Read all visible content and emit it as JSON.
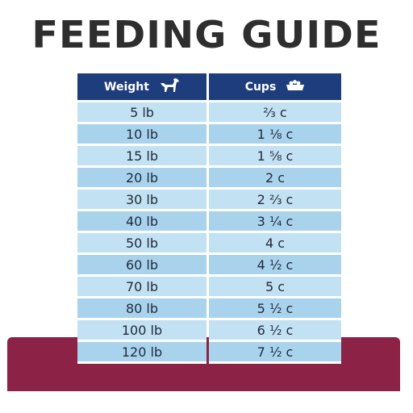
{
  "title": "FEEDING GUIDE",
  "table": {
    "headers": {
      "weight": "Weight",
      "cups": "Cups"
    },
    "icons": {
      "weight": "dog-icon",
      "cups": "food-bowl-icon"
    },
    "rows": [
      {
        "weight": "5 lb",
        "cups": "⅔ c"
      },
      {
        "weight": "10 lb",
        "cups": "1 ⅛ c"
      },
      {
        "weight": "15 lb",
        "cups": "1 ⅝ c"
      },
      {
        "weight": "20 lb",
        "cups": "2 c"
      },
      {
        "weight": "30 lb",
        "cups": "2 ⅔ c"
      },
      {
        "weight": "40 lb",
        "cups": "3 ¼ c"
      },
      {
        "weight": "50 lb",
        "cups": "4 c"
      },
      {
        "weight": "60 lb",
        "cups": "4 ½ c"
      },
      {
        "weight": "70 lb",
        "cups": "5 c"
      },
      {
        "weight": "80 lb",
        "cups": "5 ½ c"
      },
      {
        "weight": "100 lb",
        "cups": "6 ½ c"
      },
      {
        "weight": "120 lb",
        "cups": "7 ½ c"
      }
    ]
  },
  "colors": {
    "header_bg": "#1e3d7d",
    "row_light": "#c2e1f2",
    "row_dark": "#a9d3ed",
    "band": "#8c2347",
    "title": "#2e2e2e"
  }
}
